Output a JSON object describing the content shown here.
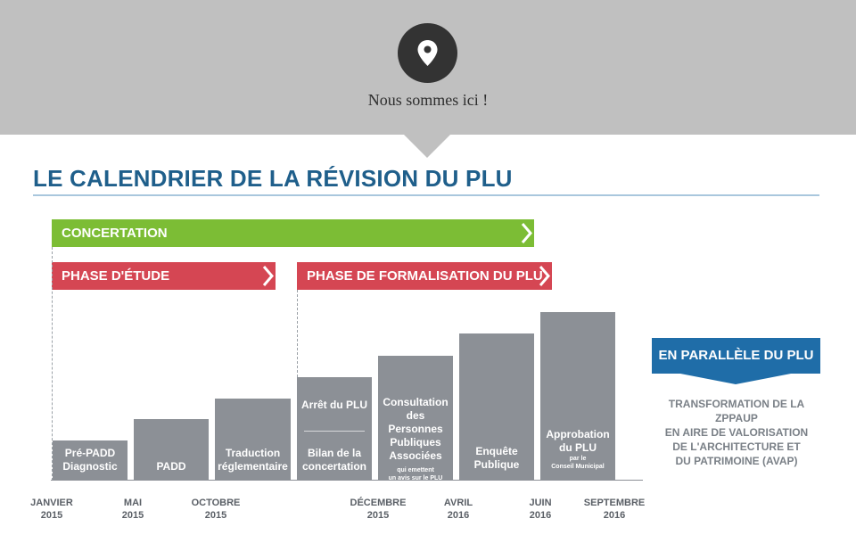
{
  "header": {
    "location_label": "Nous sommes ici !",
    "icon": "map-pin-icon",
    "band_color": "#c0c0c0"
  },
  "title": "LE CALENDRIER DE LA RÉVISION DU PLU",
  "colors": {
    "title": "#1f5f8b",
    "concertation": "#7cbd35",
    "phase": "#d54653",
    "bar": "#8c9096",
    "avap": "#1f6da8"
  },
  "bands": {
    "concertation": "CONCERTATION",
    "phase_etude": "PHASE D'ÉTUDE",
    "phase_formalisation": "PHASE DE FORMALISATION DU PLU"
  },
  "steps": [
    {
      "lines": [
        "Pré-PADD",
        "Diagnostic"
      ]
    },
    {
      "lines": [
        "PADD"
      ]
    },
    {
      "lines": [
        "Traduction",
        "réglementaire"
      ]
    },
    {
      "top": "Arrêt du PLU",
      "lines": [
        "Bilan de la",
        "concertation"
      ]
    },
    {
      "lines": [
        "Consultation",
        "des Personnes",
        "Publiques",
        "Associées"
      ],
      "sub": [
        "qui emettent",
        "un avis sur le PLU"
      ]
    },
    {
      "lines": [
        "Enquête",
        "Publique"
      ]
    },
    {
      "lines": [
        "Approbation",
        "du PLU"
      ],
      "sub": [
        "par le",
        "Conseil Municipal"
      ]
    }
  ],
  "timeline": [
    {
      "month": "JANVIER",
      "year": "2015"
    },
    {
      "month": "MAI",
      "year": "2015"
    },
    {
      "month": "OCTOBRE",
      "year": "2015"
    },
    {
      "month": "DÉCEMBRE",
      "year": "2015"
    },
    {
      "month": "AVRIL",
      "year": "2016"
    },
    {
      "month": "JUIN",
      "year": "2016"
    },
    {
      "month": "SEPTEMBRE",
      "year": "2016"
    }
  ],
  "avap": {
    "banner": "EN PARALLÈLE DU PLU",
    "lines": [
      "TRANSFORMATION DE LA ZPPAUP",
      "EN AIRE DE VALORISATION",
      "DE L'ARCHITECTURE ET",
      "DU PATRIMOINE (AVAP)"
    ]
  }
}
